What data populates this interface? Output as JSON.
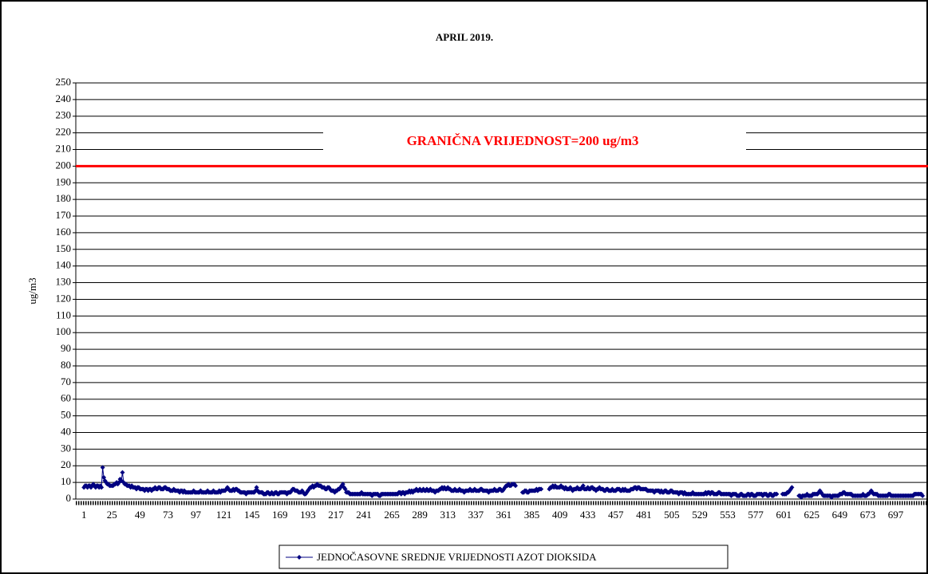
{
  "chart_data": {
    "type": "line",
    "title": "APRIL 2019.",
    "y_label": "ug/m3",
    "threshold": 200,
    "threshold_color": "#ff0000",
    "threshold_label": "GRANIČNA VRIJEDNOST=200 ug/m3",
    "xlim": [
      -6,
      724
    ],
    "xticks": [
      1,
      25,
      49,
      73,
      97,
      121,
      145,
      169,
      193,
      217,
      241,
      265,
      289,
      313,
      337,
      361,
      385,
      409,
      433,
      457,
      481,
      505,
      529,
      553,
      577,
      601,
      625,
      649,
      673,
      697
    ],
    "ylim": [
      0,
      250
    ],
    "yticks": [
      0,
      10,
      20,
      30,
      40,
      50,
      60,
      70,
      80,
      90,
      100,
      110,
      120,
      130,
      140,
      150,
      160,
      170,
      180,
      190,
      200,
      210,
      220,
      230,
      240,
      250
    ],
    "grid": true,
    "legend": "bottom",
    "series": [
      {
        "name": "JEDNOČASOVNE SREDNJE VRIJEDNOSTI AZOT DIOKSIDA",
        "color": "#000080",
        "values": [
          7,
          8,
          8,
          7,
          8,
          8,
          7,
          8,
          9,
          8,
          7,
          8,
          8,
          7,
          8,
          7,
          19,
          13,
          11,
          10,
          9,
          9,
          8,
          8,
          8,
          8,
          9,
          9,
          10,
          9,
          10,
          12,
          11,
          16,
          10,
          9,
          9,
          8,
          8,
          8,
          7,
          8,
          7,
          7,
          7,
          6,
          7,
          7,
          6,
          6,
          6,
          6,
          5,
          6,
          6,
          5,
          6,
          6,
          5,
          6,
          6,
          7,
          6,
          6,
          7,
          7,
          6,
          6,
          6,
          7,
          7,
          6,
          6,
          6,
          5,
          5,
          5,
          6,
          5,
          5,
          5,
          5,
          4,
          5,
          5,
          4,
          5,
          4,
          4,
          4,
          4,
          4,
          4,
          4,
          5,
          4,
          4,
          4,
          4,
          4,
          5,
          4,
          4,
          4,
          4,
          4,
          5,
          4,
          4,
          4,
          4,
          5,
          4,
          4,
          4,
          4,
          5,
          4,
          5,
          5,
          5,
          5,
          6,
          7,
          6,
          5,
          5,
          5,
          6,
          5,
          6,
          6,
          5,
          5,
          4,
          4,
          4,
          4,
          4,
          3,
          4,
          4,
          4,
          4,
          4,
          4,
          4,
          5,
          7,
          5,
          4,
          4,
          4,
          4,
          3,
          3,
          3,
          4,
          4,
          3,
          3,
          4,
          3,
          3,
          4,
          4,
          3,
          3,
          4,
          4,
          4,
          4,
          4,
          4,
          3,
          4,
          4,
          4,
          5,
          6,
          6,
          5,
          5,
          5,
          4,
          4,
          4,
          5,
          4,
          3,
          3,
          4,
          5,
          6,
          7,
          7,
          8,
          7,
          8,
          8,
          9,
          8,
          8,
          8,
          7,
          7,
          7,
          6,
          6,
          7,
          7,
          6,
          5,
          5,
          5,
          4,
          5,
          5,
          6,
          6,
          7,
          8,
          9,
          7,
          6,
          4,
          4,
          4,
          3,
          3,
          3,
          3,
          3,
          3,
          3,
          3,
          3,
          3,
          4,
          3,
          3,
          3,
          3,
          3,
          3,
          3,
          3,
          2,
          3,
          3,
          3,
          3,
          3,
          2,
          2,
          3,
          3,
          3,
          3,
          3,
          3,
          3,
          3,
          3,
          3,
          3,
          3,
          3,
          3,
          3,
          4,
          4,
          3,
          4,
          4,
          3,
          4,
          4,
          4,
          5,
          4,
          5,
          4,
          5,
          5,
          6,
          5,
          5,
          6,
          5,
          5,
          6,
          5,
          5,
          6,
          5,
          5,
          6,
          5,
          5,
          5,
          4,
          5,
          5,
          5,
          6,
          6,
          7,
          6,
          7,
          6,
          6,
          7,
          6,
          6,
          5,
          5,
          5,
          6,
          5,
          5,
          5,
          6,
          5,
          5,
          5,
          4,
          5,
          5,
          5,
          5,
          6,
          5,
          5,
          5,
          6,
          5,
          5,
          5,
          5,
          6,
          6,
          5,
          5,
          5,
          5,
          5,
          4,
          5,
          5,
          5,
          5,
          6,
          5,
          5,
          5,
          6,
          6,
          5,
          5,
          6,
          7,
          8,
          8,
          9,
          8,
          8,
          9,
          9,
          9,
          8,
          null,
          null,
          null,
          null,
          null,
          4,
          4,
          5,
          5,
          4,
          4,
          5,
          5,
          5,
          5,
          5,
          5,
          6,
          5,
          6,
          6,
          6,
          null,
          null,
          null,
          null,
          null,
          null,
          6,
          7,
          7,
          8,
          7,
          8,
          7,
          7,
          7,
          7,
          8,
          7,
          7,
          6,
          7,
          6,
          6,
          6,
          7,
          6,
          5,
          6,
          6,
          6,
          7,
          6,
          6,
          6,
          7,
          8,
          6,
          6,
          6,
          7,
          6,
          6,
          7,
          7,
          6,
          6,
          5,
          6,
          6,
          7,
          6,
          6,
          6,
          5,
          5,
          6,
          6,
          5,
          5,
          5,
          6,
          5,
          5,
          5,
          6,
          6,
          6,
          5,
          5,
          6,
          5,
          6,
          5,
          5,
          5,
          5,
          6,
          6,
          6,
          7,
          7,
          6,
          7,
          7,
          6,
          6,
          6,
          6,
          6,
          6,
          5,
          5,
          5,
          5,
          5,
          5,
          4,
          5,
          5,
          5,
          5,
          4,
          5,
          4,
          4,
          5,
          5,
          4,
          4,
          4,
          5,
          5,
          4,
          4,
          4,
          4,
          4,
          3,
          4,
          4,
          4,
          3,
          4,
          3,
          3,
          3,
          3,
          3,
          3,
          4,
          3,
          3,
          3,
          3,
          3,
          3,
          3,
          3,
          3,
          3,
          4,
          3,
          4,
          4,
          3,
          4,
          4,
          3,
          3,
          3,
          3,
          4,
          4,
          3,
          3,
          3,
          3,
          3,
          3,
          3,
          3,
          3,
          2,
          3,
          3,
          3,
          3,
          2,
          2,
          2,
          3,
          3,
          2,
          2,
          2,
          2,
          3,
          3,
          2,
          3,
          3,
          2,
          2,
          2,
          3,
          3,
          3,
          3,
          3,
          2,
          3,
          3,
          3,
          2,
          2,
          3,
          3,
          2,
          2,
          3,
          3,
          3,
          null,
          null,
          null,
          null,
          3,
          3,
          3,
          3,
          4,
          4,
          5,
          6,
          7,
          null,
          null,
          null,
          null,
          null,
          2,
          2,
          1,
          2,
          2,
          2,
          2,
          3,
          2,
          2,
          2,
          2,
          3,
          3,
          3,
          3,
          3,
          4,
          5,
          4,
          3,
          2,
          2,
          2,
          2,
          2,
          2,
          2,
          1,
          2,
          2,
          2,
          2,
          2,
          2,
          3,
          3,
          3,
          4,
          4,
          3,
          3,
          3,
          3,
          3,
          3,
          2,
          2,
          2,
          2,
          2,
          2,
          2,
          2,
          2,
          3,
          2,
          2,
          2,
          3,
          3,
          4,
          5,
          4,
          3,
          3,
          3,
          3,
          2,
          2,
          2,
          2,
          2,
          2,
          2,
          2,
          2,
          3,
          3,
          2,
          2,
          2,
          2,
          2,
          2,
          2,
          2,
          2,
          2,
          2,
          2,
          2,
          2,
          2,
          2,
          2,
          2,
          2,
          2,
          3,
          3,
          3,
          3,
          3,
          3,
          3,
          2
        ]
      }
    ]
  }
}
